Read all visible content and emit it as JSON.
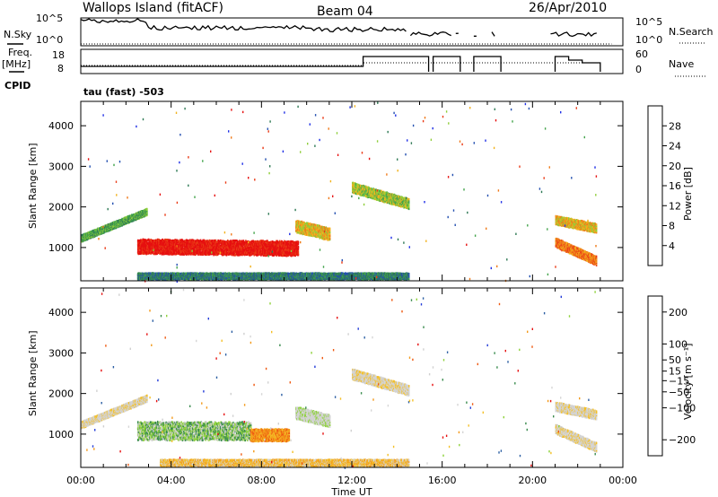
{
  "header": {
    "station": "Wallops Island (fitACF)",
    "beam": "Beam 04",
    "date": "26/Apr/2010",
    "mode": "tau (fast) -503"
  },
  "labels": {
    "nsky": "N.Sky",
    "freq": "Freq.",
    "freq_unit": "[MHz]",
    "cpid": "CPID",
    "nsearch": "N.Search",
    "nave": "Nave",
    "nsky_top": "10^5",
    "nsky_bot": "10^0",
    "freq_top": "18",
    "freq_bot": "8",
    "nave_top": "60",
    "nave_bot": "0",
    "ylabel": "Slant Range [km]",
    "xlabel": "Time UT"
  },
  "colors": {
    "power": [
      "#1f2fe6",
      "#2450b0",
      "#2f7a55",
      "#43a44b",
      "#8fce3a",
      "#f2b21e",
      "#f07a1a",
      "#ea3a16",
      "#e61010"
    ],
    "velocity": [
      "#e61010",
      "#ef5a12",
      "#f39a1a",
      "#f4c028",
      "#d6d6d6",
      "#d0d0d0",
      "#8fd23c",
      "#3a8c4e",
      "#2c5fa3",
      "#233bd8"
    ]
  },
  "chart_data": [
    {
      "type": "heatmap",
      "title": "",
      "xlabel": "",
      "ylabel": "Slant Range [km]",
      "xlim_hours": [
        0,
        24
      ],
      "ylim_km": [
        180,
        4600
      ],
      "x_ticks": [
        "00:00",
        "04:00",
        "08:00",
        "12:00",
        "16:00",
        "20:00",
        "00:00"
      ],
      "y_ticks": [
        1000,
        2000,
        3000,
        4000
      ],
      "colorbar": {
        "label": "Power [dB]",
        "ticks": [
          4,
          8,
          12,
          16,
          20,
          24,
          28
        ],
        "range": [
          0,
          32
        ]
      },
      "echo_bands": [
        {
          "name": "",
          "start_h": 0.0,
          "end_h": 2.9,
          "start_km": 1250,
          "end_km": 1900,
          "width_km": 160,
          "level": 3
        },
        {
          "name": "",
          "start_h": 2.5,
          "end_h": 9.6,
          "start_km": 1050,
          "end_km": 1000,
          "width_km": 360,
          "level": 8
        },
        {
          "name": "",
          "start_h": 9.5,
          "end_h": 11.0,
          "start_km": 1550,
          "end_km": 1350,
          "width_km": 300,
          "level": 5
        },
        {
          "name": "",
          "start_h": 12.0,
          "end_h": 14.5,
          "start_km": 2500,
          "end_km": 2100,
          "width_km": 250,
          "level": 4
        },
        {
          "name": "",
          "start_h": 21.0,
          "end_h": 22.8,
          "start_km": 1700,
          "end_km": 1500,
          "width_km": 220,
          "level": 5
        },
        {
          "name": "",
          "start_h": 21.0,
          "end_h": 22.8,
          "start_km": 1150,
          "end_km": 700,
          "width_km": 220,
          "level": 6
        },
        {
          "name": "",
          "start_h": 2.5,
          "end_h": 14.5,
          "start_km": 320,
          "end_km": 320,
          "width_km": 150,
          "level": 2
        }
      ]
    },
    {
      "type": "heatmap",
      "title": "",
      "xlabel": "Time UT",
      "ylabel": "Slant Range [km]",
      "xlim_hours": [
        0,
        24
      ],
      "ylim_km": [
        180,
        4600
      ],
      "x_ticks": [
        "00:00",
        "04:00",
        "08:00",
        "12:00",
        "16:00",
        "20:00",
        "00:00"
      ],
      "y_ticks": [
        1000,
        2000,
        3000,
        4000
      ],
      "colorbar": {
        "label": "Velocity [m s⁻¹]",
        "ticks": [
          200,
          100,
          50,
          15,
          -15,
          -50,
          -100,
          -200
        ],
        "range": [
          -250,
          250
        ]
      },
      "echo_bands": [
        {
          "name": "",
          "start_h": 0.0,
          "end_h": 2.9,
          "start_km": 1250,
          "end_km": 1900,
          "width_km": 160,
          "level": 4
        },
        {
          "name": "",
          "start_h": 2.5,
          "end_h": 7.5,
          "start_km": 1100,
          "end_km": 1100,
          "width_km": 450,
          "level": 6
        },
        {
          "name": "",
          "start_h": 7.5,
          "end_h": 9.2,
          "start_km": 1000,
          "end_km": 1000,
          "width_km": 300,
          "level": 2
        },
        {
          "name": "",
          "start_h": 9.5,
          "end_h": 11.0,
          "start_km": 1550,
          "end_km": 1350,
          "width_km": 300,
          "level": 5
        },
        {
          "name": "",
          "start_h": 12.0,
          "end_h": 14.5,
          "start_km": 2500,
          "end_km": 2100,
          "width_km": 250,
          "level": 4
        },
        {
          "name": "",
          "start_h": 21.0,
          "end_h": 22.8,
          "start_km": 1700,
          "end_km": 1500,
          "width_km": 220,
          "level": 4
        },
        {
          "name": "",
          "start_h": 21.0,
          "end_h": 22.8,
          "start_km": 1150,
          "end_km": 700,
          "width_km": 220,
          "level": 4
        },
        {
          "name": "",
          "start_h": 3.5,
          "end_h": 14.5,
          "start_km": 320,
          "end_km": 320,
          "width_km": 150,
          "level": 3
        }
      ]
    }
  ]
}
